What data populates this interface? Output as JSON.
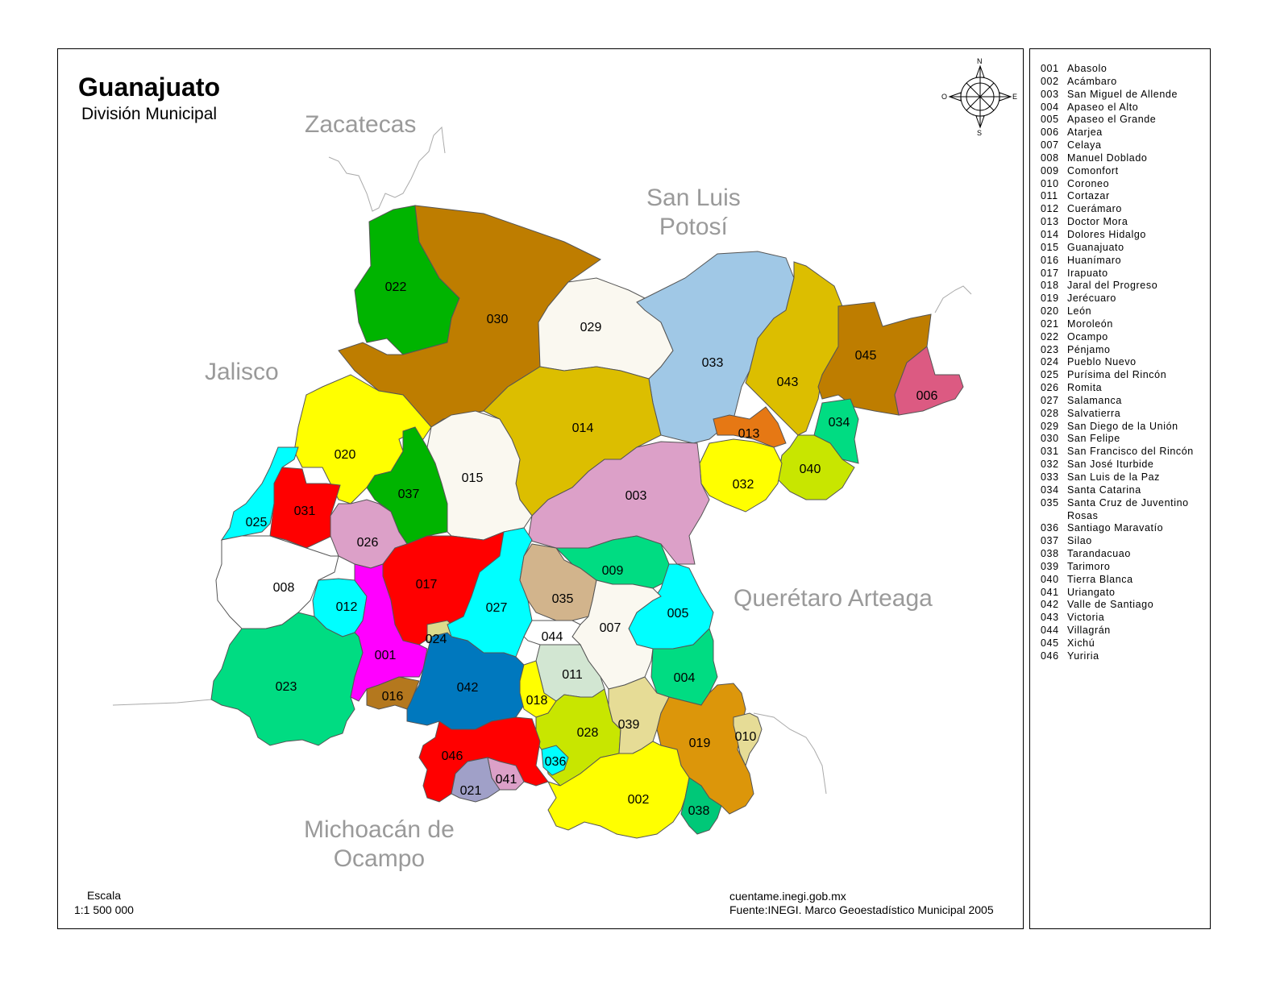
{
  "title": "Guanajuato",
  "subtitle": "División Municipal",
  "neighbors": {
    "zacatecas": "Zacatecas",
    "slp_line1": "San Luis",
    "slp_line2": "Potosí",
    "jalisco": "Jalisco",
    "queretaro": "Querétaro Arteaga",
    "michoacan_line1": "Michoacán de",
    "michoacan_line2": "Ocampo"
  },
  "compass": {
    "n": "N",
    "s": "S",
    "e": "E",
    "o": "O"
  },
  "scale": {
    "label": "Escala",
    "value": "1:1 500 000"
  },
  "source": {
    "site": "cuentame.inegi.gob.mx",
    "credit": "Fuente:INEGI. Marco Geoestadístico Municipal 2005"
  },
  "legend": [
    {
      "code": "001",
      "name": "Abasolo"
    },
    {
      "code": "002",
      "name": "Acámbaro"
    },
    {
      "code": "003",
      "name": "San Miguel de Allende"
    },
    {
      "code": "004",
      "name": "Apaseo el Alto"
    },
    {
      "code": "005",
      "name": "Apaseo el Grande"
    },
    {
      "code": "006",
      "name": "Atarjea"
    },
    {
      "code": "007",
      "name": "Celaya"
    },
    {
      "code": "008",
      "name": "Manuel Doblado"
    },
    {
      "code": "009",
      "name": "Comonfort"
    },
    {
      "code": "010",
      "name": "Coroneo"
    },
    {
      "code": "011",
      "name": "Cortazar"
    },
    {
      "code": "012",
      "name": "Cuerámaro"
    },
    {
      "code": "013",
      "name": "Doctor Mora"
    },
    {
      "code": "014",
      "name": "Dolores Hidalgo"
    },
    {
      "code": "015",
      "name": "Guanajuato"
    },
    {
      "code": "016",
      "name": "Huanímaro"
    },
    {
      "code": "017",
      "name": "Irapuato"
    },
    {
      "code": "018",
      "name": "Jaral del Progreso"
    },
    {
      "code": "019",
      "name": "Jerécuaro"
    },
    {
      "code": "020",
      "name": "León"
    },
    {
      "code": "021",
      "name": "Moroleón"
    },
    {
      "code": "022",
      "name": "Ocampo"
    },
    {
      "code": "023",
      "name": "Pénjamo"
    },
    {
      "code": "024",
      "name": "Pueblo Nuevo"
    },
    {
      "code": "025",
      "name": "Purísima del Rincón"
    },
    {
      "code": "026",
      "name": "Romita"
    },
    {
      "code": "027",
      "name": "Salamanca"
    },
    {
      "code": "028",
      "name": "Salvatierra"
    },
    {
      "code": "029",
      "name": "San Diego de la Unión"
    },
    {
      "code": "030",
      "name": "San Felipe"
    },
    {
      "code": "031",
      "name": "San Francisco del Rincón"
    },
    {
      "code": "032",
      "name": "San José Iturbide"
    },
    {
      "code": "033",
      "name": "San Luis de la Paz"
    },
    {
      "code": "034",
      "name": "Santa Catarina"
    },
    {
      "code": "035",
      "name": "Santa Cruz de Juventino Rosas"
    },
    {
      "code": "036",
      "name": "Santiago Maravatío"
    },
    {
      "code": "037",
      "name": "Silao"
    },
    {
      "code": "038",
      "name": "Tarandacuao"
    },
    {
      "code": "039",
      "name": "Tarimoro"
    },
    {
      "code": "040",
      "name": "Tierra Blanca"
    },
    {
      "code": "041",
      "name": "Uriangato"
    },
    {
      "code": "042",
      "name": "Valle de Santiago"
    },
    {
      "code": "043",
      "name": "Victoria"
    },
    {
      "code": "044",
      "name": "Villagrán"
    },
    {
      "code": "045",
      "name": "Xichú"
    },
    {
      "code": "046",
      "name": "Yuriria"
    }
  ],
  "colors": {
    "001": "#ff00ff",
    "002": "#ffff00",
    "003": "#dca0c8",
    "004": "#00dc82",
    "005": "#00ffff",
    "006": "#dc5a82",
    "007": "#faf8f0",
    "008": "#ffffff",
    "009": "#00dc82",
    "010": "#e6dc96",
    "011": "#d2e6d2",
    "012": "#00ffff",
    "013": "#e67814",
    "014": "#dcbe00",
    "015": "#faf8f0",
    "016": "#b4781e",
    "017": "#ff0000",
    "018": "#ffff00",
    "019": "#dc960a",
    "020": "#ffff00",
    "021": "#a0a0c8",
    "022": "#00b400",
    "023": "#00dc82",
    "024": "#dcdc8c",
    "025": "#00ffff",
    "026": "#dca0c8",
    "027": "#00ffff",
    "028": "#c8e600",
    "029": "#faf8f0",
    "030": "#be7d00",
    "031": "#ff0000",
    "032": "#ffff00",
    "033": "#a0c8e6",
    "034": "#00dc82",
    "035": "#d2b48c",
    "036": "#00ffff",
    "037": "#00b400",
    "038": "#00c878",
    "039": "#e6dc96",
    "040": "#c8e600",
    "041": "#dca0c8",
    "042": "#0078be",
    "043": "#dcbe00",
    "044": "#ffffff",
    "045": "#be7d00",
    "046": "#ff0000"
  }
}
